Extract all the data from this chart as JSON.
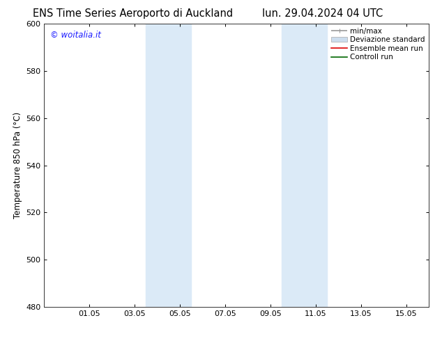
{
  "title_left": "ENS Time Series Aeroporto di Auckland",
  "title_right": "lun. 29.04.2024 04 UTC",
  "ylabel": "Temperature 850 hPa (°C)",
  "ylim": [
    480,
    600
  ],
  "yticks": [
    480,
    500,
    520,
    540,
    560,
    580,
    600
  ],
  "xlim": [
    0,
    17
  ],
  "xtick_labels": [
    "01.05",
    "03.05",
    "05.05",
    "07.05",
    "09.05",
    "11.05",
    "13.05",
    "15.05"
  ],
  "xtick_positions": [
    2,
    4,
    6,
    8,
    10,
    12,
    14,
    16
  ],
  "shaded_regions": [
    {
      "xstart": 4.5,
      "xend": 5.5,
      "color": "#dbeaf7"
    },
    {
      "xstart": 5.5,
      "xend": 6.5,
      "color": "#dbeaf7"
    },
    {
      "xstart": 10.5,
      "xend": 11.5,
      "color": "#dbeaf7"
    },
    {
      "xstart": 11.5,
      "xend": 12.5,
      "color": "#dbeaf7"
    }
  ],
  "watermark_text": "© woitalia.it",
  "watermark_color": "#1a1aff",
  "legend_entries": [
    {
      "label": "min/max",
      "color": "#999999",
      "lw": 1.2
    },
    {
      "label": "Deviazione standard",
      "color": "#ccddee",
      "lw": 6
    },
    {
      "label": "Ensemble mean run",
      "color": "#dd0000",
      "lw": 1.2
    },
    {
      "label": "Controll run",
      "color": "#006600",
      "lw": 1.2
    }
  ],
  "bg_color": "#ffffff",
  "plot_bg_color": "#ffffff",
  "spine_color": "#333333",
  "title_fontsize": 10.5,
  "axis_label_fontsize": 8.5,
  "tick_fontsize": 8,
  "legend_fontsize": 7.5
}
